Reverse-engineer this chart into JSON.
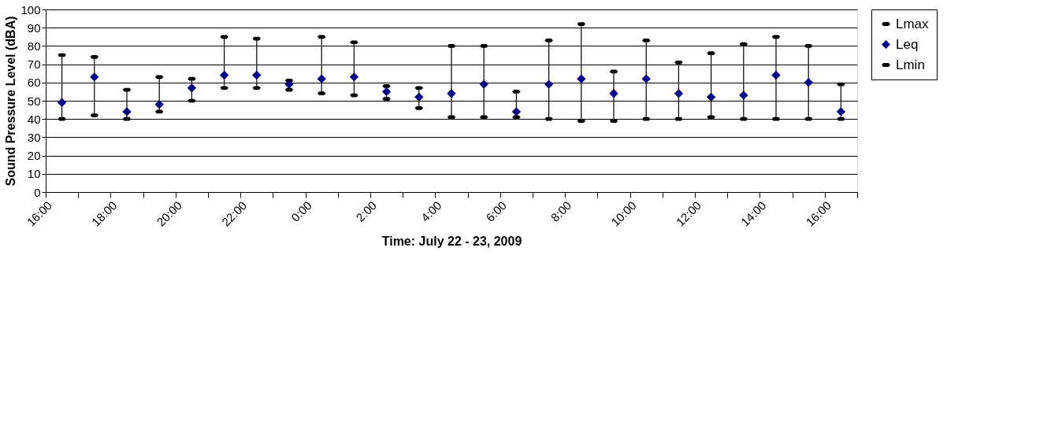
{
  "chart_data": {
    "type": "scatter",
    "xlabel": "Time: July 22 - 23, 2009",
    "ylabel": "Sound Pressure Level (dBA)",
    "x": [
      "2009-07-22T16:30",
      "2009-07-22T17:30",
      "2009-07-22T18:30",
      "2009-07-22T19:30",
      "2009-07-22T20:30",
      "2009-07-22T21:30",
      "2009-07-22T22:30",
      "2009-07-22T23:30",
      "2009-07-23T00:30",
      "2009-07-23T01:30",
      "2009-07-23T02:30",
      "2009-07-23T03:30",
      "2009-07-23T04:30",
      "2009-07-23T05:30",
      "2009-07-23T06:30",
      "2009-07-23T07:30",
      "2009-07-23T08:30",
      "2009-07-23T09:30",
      "2009-07-23T10:30",
      "2009-07-23T11:30",
      "2009-07-23T12:30",
      "2009-07-23T13:30",
      "2009-07-23T14:30",
      "2009-07-23T15:30",
      "2009-07-23T16:30"
    ],
    "series": [
      {
        "name": "Lmax",
        "color": "#000000",
        "values": [
          75,
          74,
          56,
          63,
          62,
          85,
          84,
          61,
          85,
          82,
          58,
          57,
          80,
          80,
          55,
          83,
          92,
          66,
          83,
          71,
          76,
          81,
          85,
          80,
          59
        ]
      },
      {
        "name": "Leq",
        "color": "#000080",
        "marker": "diamond",
        "values": [
          49,
          63,
          44,
          48,
          57,
          64,
          64,
          59,
          62,
          63,
          55,
          52,
          54,
          59,
          44,
          59,
          62,
          54,
          62,
          54,
          52,
          53,
          64,
          60,
          44
        ],
        "errors": [
          [
            40,
            75
          ],
          [
            42,
            74
          ],
          [
            40,
            56
          ],
          [
            44,
            63
          ],
          [
            50,
            62
          ],
          [
            57,
            85
          ],
          [
            57,
            84
          ],
          [
            56,
            61
          ],
          [
            54,
            85
          ],
          [
            53,
            82
          ],
          [
            51,
            58
          ],
          [
            46,
            57
          ],
          [
            41,
            80
          ],
          [
            41,
            80
          ],
          [
            41,
            55
          ],
          [
            40,
            83
          ],
          [
            39,
            92
          ],
          [
            39,
            66
          ],
          [
            40,
            83
          ],
          [
            40,
            71
          ],
          [
            41,
            76
          ],
          [
            40,
            81
          ],
          [
            40,
            85
          ],
          [
            40,
            80
          ],
          [
            40,
            59
          ]
        ]
      },
      {
        "name": "Lmin",
        "color": "#000000",
        "values": [
          40,
          42,
          40,
          44,
          50,
          57,
          57,
          56,
          54,
          53,
          51,
          46,
          41,
          41,
          41,
          40,
          39,
          39,
          40,
          40,
          41,
          40,
          40,
          40,
          40
        ]
      }
    ],
    "xlim": [
      "2009-07-22T16:00",
      "2009-07-23T17:00"
    ],
    "xticks": [
      {
        "value": "2009-07-22T16:00",
        "label": "16:00"
      },
      {
        "value": "2009-07-22T17:00",
        "label": null
      },
      {
        "value": "2009-07-22T18:00",
        "label": "18:00"
      },
      {
        "value": "2009-07-22T19:00",
        "label": null
      },
      {
        "value": "2009-07-22T20:00",
        "label": "20:00"
      },
      {
        "value": "2009-07-22T21:00",
        "label": null
      },
      {
        "value": "2009-07-22T22:00",
        "label": "22:00"
      },
      {
        "value": "2009-07-22T23:00",
        "label": null
      },
      {
        "value": "2009-07-23T00:00",
        "label": "0:00"
      },
      {
        "value": "2009-07-23T01:00",
        "label": null
      },
      {
        "value": "2009-07-23T02:00",
        "label": "2:00"
      },
      {
        "value": "2009-07-23T03:00",
        "label": null
      },
      {
        "value": "2009-07-23T04:00",
        "label": "4:00"
      },
      {
        "value": "2009-07-23T05:00",
        "label": null
      },
      {
        "value": "2009-07-23T06:00",
        "label": "6:00"
      },
      {
        "value": "2009-07-23T07:00",
        "label": null
      },
      {
        "value": "2009-07-23T08:00",
        "label": "8:00"
      },
      {
        "value": "2009-07-23T09:00",
        "label": null
      },
      {
        "value": "2009-07-23T10:00",
        "label": "10:00"
      },
      {
        "value": "2009-07-23T11:00",
        "label": null
      },
      {
        "value": "2009-07-23T12:00",
        "label": "12:00"
      },
      {
        "value": "2009-07-23T13:00",
        "label": null
      },
      {
        "value": "2009-07-23T14:00",
        "label": "14:00"
      },
      {
        "value": "2009-07-23T15:00",
        "label": null
      },
      {
        "value": "2009-07-23T16:00",
        "label": "16:00"
      },
      {
        "value": "2009-07-23T17:00",
        "label": null
      }
    ],
    "ylim": [
      0,
      100
    ],
    "yticks": [
      0,
      10,
      20,
      30,
      40,
      50,
      60,
      70,
      80,
      90,
      100
    ],
    "grid": "y",
    "legend": "right"
  }
}
